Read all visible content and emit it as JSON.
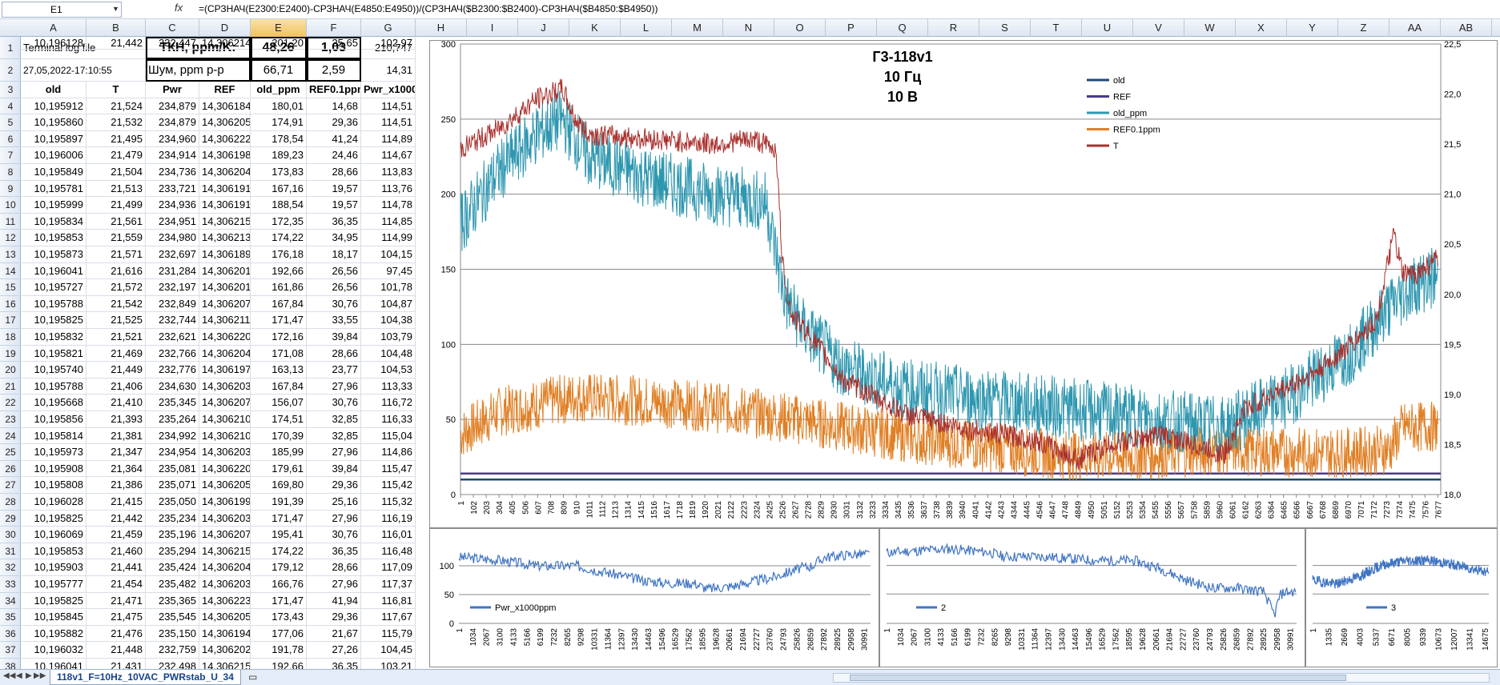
{
  "formula_bar": {
    "name_box": "E1",
    "fx": "fx",
    "formula": "=(СРЗНАЧ(E2300:E2400)-СРЗНАЧ(E4850:E4950))/(СРЗНАЧ($B2300:$B2400)-СРЗНАЧ($B4850:$B4950))"
  },
  "columns": [
    "A",
    "B",
    "C",
    "D",
    "E",
    "F",
    "G",
    "H",
    "I",
    "J",
    "K",
    "L",
    "M",
    "N",
    "O",
    "P",
    "Q",
    "R",
    "S",
    "T",
    "U",
    "V",
    "W",
    "X",
    "Y",
    "Z",
    "AA",
    "AB"
  ],
  "selected_column": "E",
  "rows": [
    "1",
    "2",
    "3",
    "4",
    "5",
    "6",
    "7",
    "8",
    "9",
    "10",
    "11",
    "12",
    "13",
    "14",
    "15",
    "16",
    "17",
    "18",
    "19",
    "20",
    "21",
    "22",
    "23",
    "24",
    "25",
    "26",
    "27",
    "28",
    "29",
    "30",
    "31",
    "32",
    "33",
    "34",
    "35",
    "36",
    "37",
    "38"
  ],
  "header_cells": {
    "a1": "Terminal log file",
    "c1": "ТКН, ppm/K:",
    "e1": "48,26",
    "f1": "1,03",
    "g1": "210,747",
    "a2": "27,05,2022-17:10:55",
    "c2": "Шум, ppm p-p",
    "e2": "66,71",
    "f2": "2,59",
    "g2": "14,31"
  },
  "table_headers": [
    "old",
    "T",
    "Pwr",
    "REF",
    "old_ppm",
    "REF0.1ppm",
    "Pwr_x1000"
  ],
  "table_rows": [
    [
      "10,195912",
      "21,524",
      "234,879",
      "14,306184",
      "180,01",
      "14,68",
      "114,51"
    ],
    [
      "10,195860",
      "21,532",
      "234,879",
      "14,306205",
      "174,91",
      "29,36",
      "114,51"
    ],
    [
      "10,195897",
      "21,495",
      "234,960",
      "14,306222",
      "178,54",
      "41,24",
      "114,89"
    ],
    [
      "10,196006",
      "21,479",
      "234,914",
      "14,306198",
      "189,23",
      "24,46",
      "114,67"
    ],
    [
      "10,195849",
      "21,504",
      "234,736",
      "14,306204",
      "173,83",
      "28,66",
      "113,83"
    ],
    [
      "10,195781",
      "21,513",
      "233,721",
      "14,306191",
      "167,16",
      "19,57",
      "113,76"
    ],
    [
      "10,195999",
      "21,499",
      "234,936",
      "14,306191",
      "188,54",
      "19,57",
      "114,78"
    ],
    [
      "10,195834",
      "21,561",
      "234,951",
      "14,306215",
      "172,35",
      "36,35",
      "114,85"
    ],
    [
      "10,195853",
      "21,559",
      "234,980",
      "14,306213",
      "174,22",
      "34,95",
      "114,99"
    ],
    [
      "10,195873",
      "21,571",
      "232,697",
      "14,306189",
      "176,18",
      "18,17",
      "104,15"
    ],
    [
      "10,196041",
      "21,616",
      "231,284",
      "14,306201",
      "192,66",
      "26,56",
      "97,45"
    ],
    [
      "10,195727",
      "21,572",
      "232,197",
      "14,306201",
      "161,86",
      "26,56",
      "101,78"
    ],
    [
      "10,195788",
      "21,542",
      "232,849",
      "14,306207",
      "167,84",
      "30,76",
      "104,87"
    ],
    [
      "10,195825",
      "21,525",
      "232,744",
      "14,306211",
      "171,47",
      "33,55",
      "104,38"
    ],
    [
      "10,195832",
      "21,521",
      "232,621",
      "14,306220",
      "172,16",
      "39,84",
      "103,79"
    ],
    [
      "10,195821",
      "21,469",
      "232,766",
      "14,306204",
      "171,08",
      "28,66",
      "104,48"
    ],
    [
      "10,195740",
      "21,449",
      "232,776",
      "14,306197",
      "163,13",
      "23,77",
      "104,53"
    ],
    [
      "10,195788",
      "21,406",
      "234,630",
      "14,306203",
      "167,84",
      "27,96",
      "113,33"
    ],
    [
      "10,195668",
      "21,410",
      "235,345",
      "14,306207",
      "156,07",
      "30,76",
      "116,72"
    ],
    [
      "10,195856",
      "21,393",
      "235,264",
      "14,306210",
      "174,51",
      "32,85",
      "116,33"
    ],
    [
      "10,195814",
      "21,381",
      "234,992",
      "14,306210",
      "170,39",
      "32,85",
      "115,04"
    ],
    [
      "10,195973",
      "21,347",
      "234,954",
      "14,306203",
      "185,99",
      "27,96",
      "114,86"
    ],
    [
      "10,195908",
      "21,364",
      "235,081",
      "14,306220",
      "179,61",
      "39,84",
      "115,47"
    ],
    [
      "10,195808",
      "21,386",
      "235,071",
      "14,306205",
      "169,80",
      "29,36",
      "115,42"
    ],
    [
      "10,196028",
      "21,415",
      "235,050",
      "14,306199",
      "191,39",
      "25,16",
      "115,32"
    ],
    [
      "10,195825",
      "21,442",
      "235,234",
      "14,306203",
      "171,47",
      "27,96",
      "116,19"
    ],
    [
      "10,196069",
      "21,459",
      "235,196",
      "14,306207",
      "195,41",
      "30,76",
      "116,01"
    ],
    [
      "10,195853",
      "21,460",
      "235,294",
      "14,306215",
      "174,22",
      "36,35",
      "116,48"
    ],
    [
      "10,195903",
      "21,441",
      "235,424",
      "14,306204",
      "179,12",
      "28,66",
      "117,09"
    ],
    [
      "10,195777",
      "21,454",
      "235,482",
      "14,306203",
      "166,76",
      "27,96",
      "117,37"
    ],
    [
      "10,195825",
      "21,471",
      "235,365",
      "14,306223",
      "171,47",
      "41,94",
      "116,81"
    ],
    [
      "10,195845",
      "21,475",
      "235,545",
      "14,306205",
      "173,43",
      "29,36",
      "117,67"
    ],
    [
      "10,195882",
      "21,476",
      "235,150",
      "14,306194",
      "177,06",
      "21,67",
      "115,79"
    ],
    [
      "10,196032",
      "21,448",
      "232,759",
      "14,306202",
      "191,78",
      "27,26",
      "104,45"
    ],
    [
      "10,196041",
      "21,431",
      "232,498",
      "14,306215",
      "192,66",
      "36,35",
      "103,21"
    ],
    [
      "10,196128",
      "21,442",
      "232,447",
      "14,306214",
      "201,20",
      "35,65",
      "102,97"
    ]
  ],
  "sheet_tab": "118v1_F=10Hz_10VAC_PWRstab_U_34",
  "colors": {
    "old": "#1f497d",
    "ref": "#4b3a8c",
    "old_ppm": "#2e97b0",
    "ref01": "#e07f24",
    "t": "#a8302c",
    "pwr": "#3f74c2"
  },
  "chart_data": [
    {
      "type": "line",
      "title": [
        "Г3-118v1",
        "10 Гц",
        "10 В"
      ],
      "y_left_ticks": [
        "0",
        "50",
        "100",
        "150",
        "200",
        "250",
        "300"
      ],
      "y_right_ticks": [
        "18,0",
        "18,5",
        "19,0",
        "19,5",
        "20,0",
        "20,5",
        "21,0",
        "21,5",
        "22,0",
        "22,5"
      ],
      "ylim_left": [
        0,
        300
      ],
      "ylim_right": [
        18.0,
        22.5
      ],
      "x_ticks": [
        "1",
        "102",
        "203",
        "304",
        "405",
        "506",
        "607",
        "708",
        "809",
        "910",
        "1011",
        "1112",
        "1213",
        "1314",
        "1415",
        "1516",
        "1617",
        "1718",
        "1819",
        "1920",
        "2021",
        "2122",
        "2223",
        "2324",
        "2425",
        "2526",
        "2627",
        "2728",
        "2829",
        "2930",
        "3031",
        "3132",
        "3233",
        "3334",
        "3435",
        "3536",
        "3637",
        "3738",
        "3839",
        "3940",
        "4041",
        "4142",
        "4243",
        "4344",
        "4445",
        "4546",
        "4647",
        "4748",
        "4849",
        "4950",
        "5051",
        "5152",
        "5253",
        "5354",
        "5455",
        "5556",
        "5657",
        "5758",
        "5859",
        "5960",
        "6061",
        "6162",
        "6263",
        "6364",
        "6465",
        "6566",
        "6667",
        "6768",
        "6869",
        "6970",
        "7071",
        "7172",
        "7273",
        "7374",
        "7475",
        "7576",
        "7677"
      ],
      "legend": [
        "old",
        "REF",
        "old_ppm",
        "REF0.1ppm",
        "T"
      ],
      "series": [
        {
          "name": "old",
          "values": [
            10,
            10
          ]
        },
        {
          "name": "REF",
          "values": [
            14,
            14
          ]
        },
        {
          "name": "old_ppm",
          "axis": "left",
          "x": [
            1,
            300,
            600,
            800,
            1000,
            1500,
            2000,
            2400,
            2550,
            2700,
            3000,
            3500,
            4000,
            4500,
            5000,
            5500,
            6000,
            6500,
            7000,
            7300,
            7500,
            7677
          ],
          "values": [
            180,
            215,
            240,
            250,
            225,
            210,
            200,
            195,
            130,
            110,
            85,
            70,
            65,
            60,
            55,
            50,
            45,
            65,
            95,
            125,
            140,
            145
          ]
        },
        {
          "name": "REF0.1ppm",
          "axis": "left",
          "x": [
            1,
            300,
            600,
            900,
            1500,
            2000,
            2500,
            3000,
            3500,
            4000,
            4500,
            5000,
            5500,
            6000,
            6500,
            7000,
            7300,
            7400,
            7677
          ],
          "values": [
            40,
            55,
            60,
            65,
            62,
            58,
            52,
            45,
            38,
            33,
            28,
            25,
            27,
            30,
            28,
            28,
            30,
            45,
            45
          ]
        },
        {
          "name": "T",
          "axis": "right",
          "x": [
            1,
            300,
            600,
            800,
            900,
            1000,
            1500,
            2000,
            2300,
            2480,
            2530,
            2600,
            2800,
            3000,
            3500,
            4000,
            4500,
            4850,
            5100,
            5500,
            6000,
            6160,
            6300,
            6700,
            7000,
            7200,
            7330,
            7400,
            7500,
            7677
          ],
          "values": [
            21.45,
            21.65,
            21.95,
            22.05,
            21.75,
            21.6,
            21.55,
            21.5,
            21.55,
            21.45,
            20.3,
            19.8,
            19.5,
            19.15,
            18.8,
            18.65,
            18.55,
            18.35,
            18.5,
            18.6,
            18.4,
            18.85,
            18.95,
            19.2,
            19.5,
            19.75,
            20.6,
            20.2,
            20.2,
            20.35
          ]
        }
      ]
    },
    {
      "type": "line",
      "y_ticks": [
        "0",
        "50",
        "100"
      ],
      "ylim": [
        0,
        150
      ],
      "x_ticks": [
        "1",
        "1034",
        "2067",
        "3100",
        "4133",
        "5166",
        "6199",
        "7232",
        "8265",
        "9298",
        "10331",
        "11364",
        "12397",
        "13430",
        "14463",
        "15496",
        "16529",
        "17562",
        "18595",
        "19628",
        "20661",
        "21694",
        "22727",
        "23760",
        "24793",
        "25826",
        "26859",
        "27892",
        "28925",
        "29958",
        "30991"
      ],
      "legend": [
        "Pwr_x1000ppm"
      ],
      "series": [
        {
          "name": "Pwr_x1000ppm",
          "x": [
            1,
            3000,
            6000,
            9000,
            12000,
            14000,
            16000,
            18000,
            19000,
            21000,
            24000,
            26000,
            27000,
            28000,
            30000,
            31500
          ],
          "values": [
            115,
            110,
            100,
            100,
            85,
            75,
            70,
            70,
            60,
            65,
            80,
            95,
            100,
            115,
            120,
            120
          ]
        }
      ]
    },
    {
      "type": "line",
      "x_ticks": [
        "1",
        "1034",
        "2067",
        "3100",
        "4133",
        "5166",
        "6199",
        "7232",
        "8265",
        "9298",
        "10331",
        "11364",
        "12397",
        "13430",
        "14463",
        "15496",
        "16529",
        "17562",
        "18595",
        "19628",
        "20661",
        "21694",
        "22727",
        "23760",
        "24793",
        "25826",
        "26859",
        "27892",
        "28925",
        "29958",
        "30991"
      ],
      "legend": [
        "2"
      ],
      "series": [
        {
          "name": "2",
          "x": [
            1,
            5000,
            8000,
            9000,
            12000,
            16000,
            19000,
            21000,
            23000,
            25000,
            27000,
            29000,
            29800,
            30200,
            30600,
            31500
          ],
          "values": [
            0.9,
            0.95,
            0.9,
            0.85,
            0.85,
            0.8,
            0.8,
            0.7,
            0.55,
            0.45,
            0.45,
            0.4,
            0.1,
            0.35,
            0.4,
            0.4
          ]
        }
      ]
    },
    {
      "type": "line",
      "x_ticks": [
        "1",
        "1335",
        "2669",
        "4003",
        "5337",
        "6671",
        "8005",
        "9339",
        "10673",
        "12007",
        "13341",
        "14675"
      ],
      "legend": [
        "3"
      ],
      "series": [
        {
          "name": "3",
          "x": [
            1,
            2000,
            4000,
            6000,
            8000,
            10000,
            12000,
            13500,
            15000
          ],
          "values": [
            0.55,
            0.5,
            0.6,
            0.75,
            0.8,
            0.8,
            0.75,
            0.7,
            0.65
          ]
        }
      ]
    }
  ]
}
